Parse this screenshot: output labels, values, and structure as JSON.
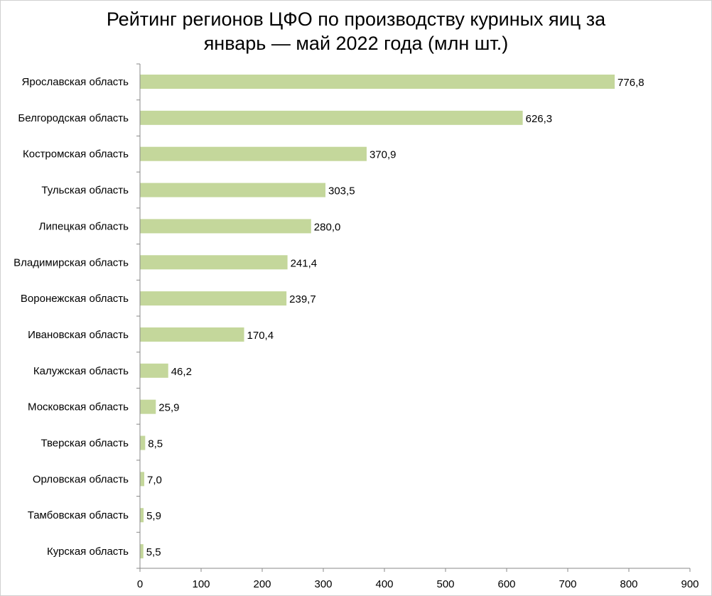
{
  "chart_data": {
    "type": "bar",
    "orientation": "horizontal",
    "title_lines": [
      "Рейтинг регионов ЦФО по производству куриных яиц за",
      "январь — май 2022 года (млн шт.)"
    ],
    "categories": [
      "Ярославская область",
      "Белгородская область",
      "Костромская область",
      "Тульская область",
      "Липецкая область",
      "Владимирская область",
      "Воронежская область",
      "Ивановская область",
      "Калужская область",
      "Московская область",
      "Тверская область",
      "Орловская область",
      "Тамбовская область",
      "Курская область"
    ],
    "values": [
      776.8,
      626.3,
      370.9,
      303.5,
      280.0,
      241.4,
      239.7,
      170.4,
      46.2,
      25.9,
      8.5,
      7.0,
      5.9,
      5.5
    ],
    "value_labels": [
      "776,8",
      "626,3",
      "370,9",
      "303,5",
      "280,0",
      "241,4",
      "239,7",
      "170,4",
      "46,2",
      "25,9",
      "8,5",
      "7,0",
      "5,9",
      "5,5"
    ],
    "xlim": [
      0,
      900
    ],
    "xticks": [
      0,
      100,
      200,
      300,
      400,
      500,
      600,
      700,
      800,
      900
    ],
    "grid": false,
    "legend": "none",
    "bar_color": "#c4d79b"
  }
}
